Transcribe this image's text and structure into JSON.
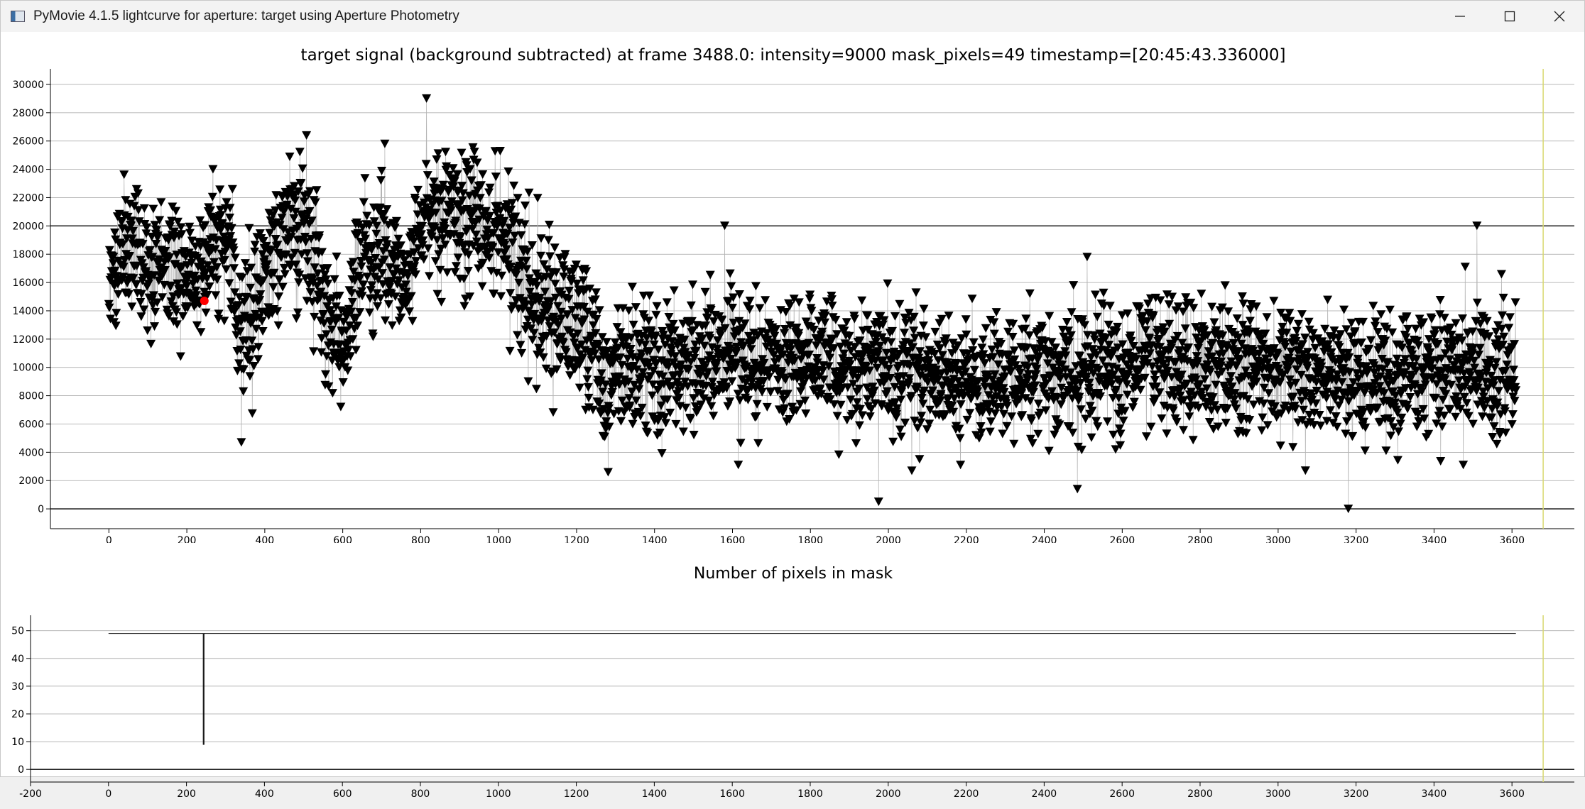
{
  "window": {
    "title": "PyMovie 4.1.5 lightcurve for aperture: target using Aperture Photometry",
    "icon": "pymovie-app-icon",
    "controls": [
      "minimize-icon",
      "maximize-icon",
      "close-icon"
    ]
  },
  "colors": {
    "marker": "#000000",
    "connector": "#b4b4b4",
    "highlight": "#ff0000",
    "frame_cursor": "#d8d870",
    "axis": "#000000",
    "grid": "#a0a0a0"
  },
  "chart_data": [
    {
      "type": "scatter",
      "title": "target signal (background subtracted) at frame 3488.0: intensity=9000 mask_pixels=49 timestamp=[20:45:43.336000]",
      "xlabel": "",
      "ylabel": "",
      "marker": "inverted-triangle",
      "connected": true,
      "grid": "horizontal",
      "reference_line_y": 20000,
      "highlight_point": {
        "x": 245,
        "y": 14700
      },
      "frame_cursor_x": 3680,
      "xlim": [
        -150,
        3760
      ],
      "ylim": [
        -1400,
        30600
      ],
      "x_ticks": [
        "0",
        "200",
        "400",
        "600",
        "800",
        "1000",
        "1200",
        "1400",
        "1600",
        "1800",
        "2000",
        "2200",
        "2400",
        "2600",
        "2800",
        "3000",
        "3200",
        "3400",
        "3600"
      ],
      "y_ticks": [
        "0",
        "2000",
        "4000",
        "6000",
        "8000",
        "10000",
        "12000",
        "14000",
        "16000",
        "18000",
        "20000",
        "22000",
        "24000",
        "26000",
        "28000",
        "30000"
      ],
      "x_range": [
        0,
        3610
      ],
      "trend": [
        [
          0,
          17500
        ],
        [
          60,
          18200
        ],
        [
          120,
          17500
        ],
        [
          200,
          16000
        ],
        [
          240,
          17800
        ],
        [
          290,
          19500
        ],
        [
          320,
          17000
        ],
        [
          345,
          12000
        ],
        [
          370,
          13500
        ],
        [
          400,
          16500
        ],
        [
          450,
          19500
        ],
        [
          520,
          19000
        ],
        [
          560,
          13500
        ],
        [
          590,
          11000
        ],
        [
          620,
          14500
        ],
        [
          660,
          18000
        ],
        [
          720,
          16500
        ],
        [
          760,
          16500
        ],
        [
          800,
          20000
        ],
        [
          900,
          20500
        ],
        [
          1000,
          19500
        ],
        [
          1060,
          17000
        ],
        [
          1120,
          14500
        ],
        [
          1180,
          13500
        ],
        [
          1230,
          12000
        ],
        [
          1260,
          9500
        ],
        [
          1300,
          9500
        ],
        [
          1400,
          10000
        ],
        [
          1500,
          10500
        ],
        [
          1700,
          10500
        ],
        [
          1900,
          10300
        ],
        [
          2100,
          9500
        ],
        [
          2300,
          9200
        ],
        [
          2500,
          9800
        ],
        [
          2700,
          10500
        ],
        [
          2900,
          10000
        ],
        [
          3100,
          9500
        ],
        [
          3300,
          9500
        ],
        [
          3500,
          10000
        ],
        [
          3610,
          9700
        ]
      ],
      "spread": [
        [
          0,
          2500
        ],
        [
          550,
          3200
        ],
        [
          800,
          2400
        ],
        [
          1100,
          3200
        ],
        [
          1230,
          3000
        ],
        [
          1600,
          2600
        ],
        [
          3610,
          2600
        ]
      ],
      "spikes": [
        {
          "x": 340,
          "y": 4700
        },
        {
          "x": 815,
          "y": 29000
        },
        {
          "x": 708,
          "y": 25800
        },
        {
          "x": 1580,
          "y": 20000
        },
        {
          "x": 1615,
          "y": 3100
        },
        {
          "x": 1975,
          "y": 500
        },
        {
          "x": 2080,
          "y": 3500
        },
        {
          "x": 2185,
          "y": 3100
        },
        {
          "x": 2485,
          "y": 1400
        },
        {
          "x": 2510,
          "y": 17800
        },
        {
          "x": 3070,
          "y": 2700
        },
        {
          "x": 3180,
          "y": 0
        },
        {
          "x": 3475,
          "y": 3100
        },
        {
          "x": 3480,
          "y": 17100
        },
        {
          "x": 3510,
          "y": 20000
        },
        {
          "x": 1645,
          "y": 14700
        }
      ]
    },
    {
      "type": "line",
      "title": "Number of pixels in mask",
      "xlabel": "",
      "ylabel": "",
      "grid": "horizontal",
      "frame_cursor_x": 3680,
      "xlim": [
        -200,
        3760
      ],
      "ylim": [
        -2,
        53
      ],
      "x_ticks": [
        "-200",
        "0",
        "200",
        "400",
        "600",
        "800",
        "1000",
        "1200",
        "1400",
        "1600",
        "1800",
        "2000",
        "2200",
        "2400",
        "2600",
        "2800",
        "3000",
        "3200",
        "3400",
        "3600"
      ],
      "y_ticks": [
        "0",
        "10",
        "20",
        "30",
        "40",
        "50"
      ],
      "series": [
        {
          "points": [
            [
              0,
              49
            ],
            [
              243,
              49
            ],
            [
              243,
              9
            ],
            [
              245,
              9
            ],
            [
              245,
              49
            ],
            [
              3610,
              49
            ]
          ]
        }
      ]
    }
  ]
}
